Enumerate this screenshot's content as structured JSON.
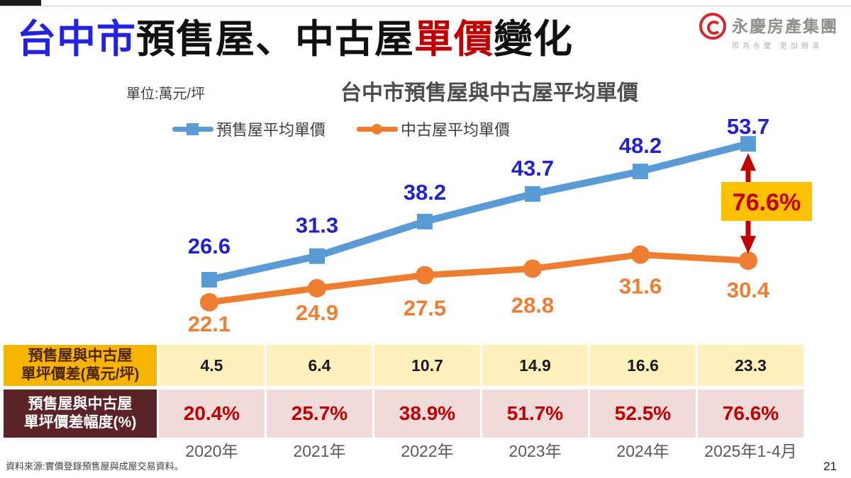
{
  "header": {
    "title": {
      "part1": "台中市",
      "part2": "預售屋、中古屋",
      "part3": "單價",
      "part4": "變化"
    },
    "logo": {
      "name": "永慶房產集團",
      "tagline": "因為永慶 更加圓滿"
    }
  },
  "chart": {
    "unit_label": "單位:萬元/坪",
    "title": "台中市預售屋與中古屋平均單價"
  },
  "chart_data": {
    "type": "line",
    "title": "台中市預售屋與中古屋平均單價",
    "unit": "萬元/坪",
    "categories": [
      "2020年",
      "2021年",
      "2022年",
      "2023年",
      "2024年",
      "2025年1-4月"
    ],
    "series": [
      {
        "name": "預售屋平均單價",
        "color": "#5B9BD5",
        "label_color": "#2222CC",
        "marker": "square",
        "values": [
          26.6,
          31.3,
          38.2,
          43.7,
          48.2,
          53.7
        ]
      },
      {
        "name": "中古屋平均單價",
        "color": "#ED7D31",
        "label_color": "#ED7D31",
        "marker": "circle",
        "values": [
          22.1,
          24.9,
          27.5,
          28.8,
          31.6,
          30.4
        ]
      }
    ],
    "annotation": {
      "label": "76.6%",
      "box_color": "#FFC000",
      "text_color": "#C00000",
      "arrow_color": "#C00000"
    },
    "ylim": [
      20,
      56
    ],
    "grid": false,
    "legend_position": "top"
  },
  "table": {
    "rows": [
      {
        "header_line1": "預售屋與中古屋",
        "header_line2": "單坪價差(萬元/坪)",
        "values": [
          "4.5",
          "6.4",
          "10.7",
          "14.9",
          "16.6",
          "23.3"
        ]
      },
      {
        "header_line1": "預售屋與中古屋",
        "header_line2": "單坪價差幅度(%)",
        "values": [
          "20.4%",
          "25.7%",
          "38.9%",
          "51.7%",
          "52.5%",
          "76.6%"
        ]
      }
    ]
  },
  "footer": {
    "source": "資料來源:實價登錄預售屋與成屋交易資料。",
    "page_number": "21"
  }
}
